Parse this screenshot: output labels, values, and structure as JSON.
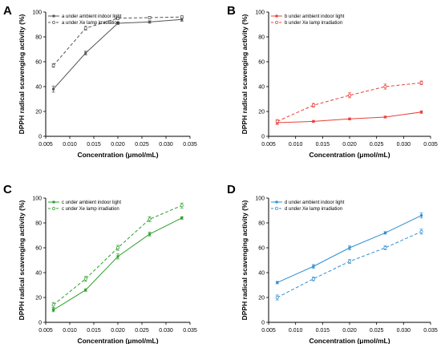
{
  "chart_data": [
    {
      "type": "line",
      "panel_label": "A",
      "color": "#555555",
      "xlabel": "Concentration (μmol/mL)",
      "ylabel": "DPPH radical scavenging activity (%)",
      "xlim": [
        0.005,
        0.035
      ],
      "ylim": [
        0,
        100
      ],
      "xticks": [
        "0.005",
        "0.010",
        "0.015",
        "0.020",
        "0.025",
        "0.030",
        "0.035"
      ],
      "yticks": [
        "0",
        "20",
        "40",
        "60",
        "80",
        "100"
      ],
      "legend_position": "top-left",
      "x": [
        0.0066,
        0.0133,
        0.02,
        0.0266,
        0.0333
      ],
      "series": [
        {
          "name": "a under ambient indoor light",
          "style": "solid",
          "values": [
            38,
            67,
            91,
            92,
            94
          ],
          "errors": [
            2.5,
            1.5,
            1,
            1,
            1.5
          ]
        },
        {
          "name": "a under Xe lamp irradiation",
          "style": "dashed",
          "values": [
            57,
            87,
            95,
            95.5,
            96
          ],
          "errors": [
            1.5,
            1.5,
            1,
            1,
            1
          ]
        }
      ]
    },
    {
      "type": "line",
      "panel_label": "B",
      "color": "#e8403a",
      "xlabel": "Concentration (μmol/mL)",
      "ylabel": "DPPH radical scavenging activity (%)",
      "xlim": [
        0.005,
        0.035
      ],
      "ylim": [
        0,
        100
      ],
      "xticks": [
        "0.005",
        "0.010",
        "0.015",
        "0.020",
        "0.025",
        "0.030",
        "0.035"
      ],
      "yticks": [
        "0",
        "20",
        "40",
        "60",
        "80",
        "100"
      ],
      "legend_position": "top-left",
      "x": [
        0.0066,
        0.0133,
        0.02,
        0.0266,
        0.0333
      ],
      "series": [
        {
          "name": "b under ambient indoor light",
          "style": "solid",
          "values": [
            11,
            12,
            14,
            15.5,
            19.5
          ],
          "errors": [
            1.5,
            0.8,
            0.8,
            0.8,
            1
          ]
        },
        {
          "name": "b under Xe lamp irradiation",
          "style": "dashed",
          "values": [
            12,
            25,
            33,
            40,
            43
          ],
          "errors": [
            1.5,
            1.5,
            2,
            2,
            1.5
          ]
        }
      ]
    },
    {
      "type": "line",
      "panel_label": "C",
      "color": "#2ca02c",
      "xlabel": "Concentration (μmol/mL)",
      "ylabel": "DPPH radical scavenging activity (%)",
      "xlim": [
        0.005,
        0.035
      ],
      "ylim": [
        0,
        100
      ],
      "xticks": [
        "0.005",
        "0.010",
        "0.015",
        "0.020",
        "0.025",
        "0.030",
        "0.035"
      ],
      "yticks": [
        "0",
        "20",
        "40",
        "60",
        "80",
        "100"
      ],
      "legend_position": "top-left",
      "x": [
        0.0066,
        0.0133,
        0.02,
        0.0266,
        0.0333
      ],
      "series": [
        {
          "name": "c under ambient indoor light",
          "style": "solid",
          "values": [
            10,
            26,
            53,
            71,
            84
          ],
          "errors": [
            1.5,
            1,
            2,
            1.5,
            1
          ]
        },
        {
          "name": "c under Xe lamp irradiation",
          "style": "dashed",
          "values": [
            14,
            35,
            60,
            83,
            94
          ],
          "errors": [
            2,
            2,
            2,
            2,
            2
          ]
        }
      ]
    },
    {
      "type": "line",
      "panel_label": "D",
      "color": "#2e8fd0",
      "xlabel": "Concentration (μmol/mL)",
      "ylabel": "DPPH radical scavenging activity (%)",
      "xlim": [
        0.005,
        0.035
      ],
      "ylim": [
        0,
        100
      ],
      "xticks": [
        "0.005",
        "0.010",
        "0.015",
        "0.020",
        "0.025",
        "0.030",
        "0.035"
      ],
      "yticks": [
        "0",
        "20",
        "40",
        "60",
        "80",
        "100"
      ],
      "legend_position": "top-left",
      "x": [
        0.0066,
        0.0133,
        0.02,
        0.0266,
        0.0333
      ],
      "series": [
        {
          "name": "d under ambient indoor light",
          "style": "solid",
          "values": [
            32,
            45,
            60,
            72,
            86
          ],
          "errors": [
            1,
            1.5,
            1.5,
            1,
            2
          ]
        },
        {
          "name": "d under Xe lamp irradiation",
          "style": "dashed",
          "values": [
            20,
            35,
            49,
            60,
            73
          ],
          "errors": [
            2,
            1.5,
            1.5,
            1.5,
            2
          ]
        }
      ]
    }
  ]
}
